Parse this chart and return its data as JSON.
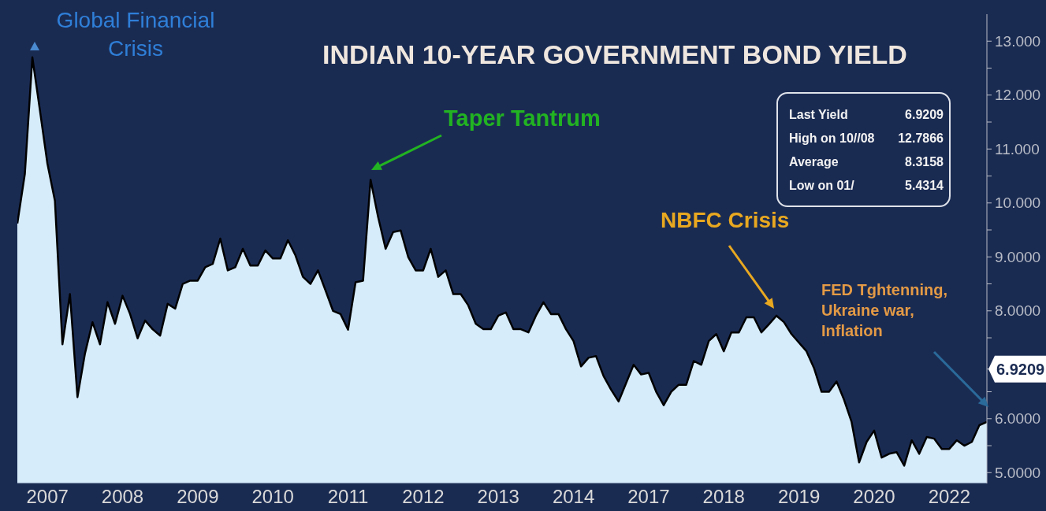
{
  "chart_data": {
    "type": "area",
    "title": "INDIAN 10-YEAR GOVERNMENT BOND YIELD",
    "categories": [
      null,
      null,
      null,
      null,
      "2007",
      null,
      null,
      null,
      null,
      null,
      null,
      null,
      null,
      null,
      "2008",
      null,
      null,
      null,
      null,
      null,
      null,
      null,
      null,
      null,
      "2009",
      null,
      null,
      null,
      null,
      null,
      null,
      null,
      null,
      null,
      "2010",
      null,
      null,
      null,
      null,
      null,
      null,
      null,
      null,
      null,
      "2011",
      null,
      null,
      null,
      null,
      null,
      null,
      null,
      null,
      null,
      "2012",
      null,
      null,
      null,
      null,
      null,
      null,
      null,
      null,
      null,
      "2013",
      null,
      null,
      null,
      null,
      null,
      null,
      null,
      null,
      null,
      "2014",
      null,
      null,
      null,
      null,
      null,
      null,
      null,
      null,
      null,
      "2017",
      null,
      null,
      null,
      null,
      null,
      null,
      null,
      null,
      null,
      "2018",
      null,
      null,
      null,
      null,
      null,
      null,
      null,
      null,
      null,
      "2019",
      null,
      null,
      null,
      null,
      null,
      null,
      null,
      null,
      null,
      "2020",
      null,
      null,
      null,
      null,
      null,
      null,
      null,
      null,
      null,
      "2022",
      null,
      null,
      null,
      null,
      null
    ],
    "series": [
      {
        "color": "#d6ecfb",
        "values": [
          9.62,
          10.54,
          12.7,
          11.72,
          10.73,
          10.04,
          7.38,
          8.31,
          6.4,
          7.21,
          7.79,
          7.38,
          8.16,
          7.76,
          8.28,
          7.94,
          7.49,
          7.82,
          7.66,
          7.54,
          8.13,
          8.04,
          8.5,
          8.56,
          8.56,
          8.81,
          8.87,
          9.34,
          8.75,
          8.81,
          9.15,
          8.84,
          8.84,
          9.12,
          8.97,
          8.97,
          9.31,
          9.03,
          8.63,
          8.5,
          8.75,
          8.38,
          8.0,
          7.94,
          7.65,
          8.53,
          8.56,
          10.43,
          9.74,
          9.15,
          9.46,
          9.49,
          9.0,
          8.75,
          8.75,
          9.15,
          8.63,
          8.75,
          8.31,
          8.31,
          8.1,
          7.76,
          7.66,
          7.66,
          7.91,
          7.97,
          7.66,
          7.66,
          7.6,
          7.91,
          8.16,
          7.94,
          7.94,
          7.66,
          7.44,
          6.97,
          7.13,
          7.16,
          6.79,
          6.54,
          6.32,
          6.66,
          7.0,
          6.82,
          6.85,
          6.5,
          6.25,
          6.5,
          6.63,
          6.63,
          7.07,
          7.0,
          7.44,
          7.57,
          7.25,
          7.6,
          7.6,
          7.88,
          7.88,
          7.6,
          7.75,
          7.91,
          7.79,
          7.57,
          7.41,
          7.25,
          6.94,
          6.5,
          6.5,
          6.69,
          6.35,
          5.94,
          5.19,
          5.57,
          5.78,
          5.28,
          5.35,
          5.38,
          5.13,
          5.6,
          5.35,
          5.66,
          5.63,
          5.44,
          5.44,
          5.6,
          5.5,
          5.57,
          5.88,
          5.94
        ]
      }
    ],
    "ylim": [
      4.8,
      13.5
    ],
    "yticks": [
      {
        "value": 5,
        "label": "5.0000"
      },
      {
        "value": 5.5,
        "label": null
      },
      {
        "value": 6,
        "label": "6.0000"
      },
      {
        "value": 6.5,
        "label": null
      },
      {
        "value": 6.9209,
        "label": "6.9209"
      },
      {
        "value": 7.5,
        "label": null
      },
      {
        "value": 8,
        "label": "8.0000"
      },
      {
        "value": 8.5,
        "label": null
      },
      {
        "value": 9,
        "label": "9.0000"
      },
      {
        "value": 9.5,
        "label": null
      },
      {
        "value": 10,
        "label": "10.000"
      },
      {
        "value": 10.5,
        "label": null
      },
      {
        "value": 11,
        "label": "11.000"
      },
      {
        "value": 11.5,
        "label": null
      },
      {
        "value": 12,
        "label": "12.000"
      },
      {
        "value": 12.5,
        "label": null
      },
      {
        "value": 13,
        "label": "13.000"
      }
    ],
    "annotations": [
      "Global Financial Crisis",
      "Taper Tantrum",
      "NBFC Crisis",
      "FED Tghtenning, Ukraine war, Inflation",
      "Last Yield 6.9209",
      "High on 10//08 12.7866",
      "Average 8.3158",
      "Low on 01/ 5.4314"
    ],
    "grid": false,
    "legend": false
  }
}
